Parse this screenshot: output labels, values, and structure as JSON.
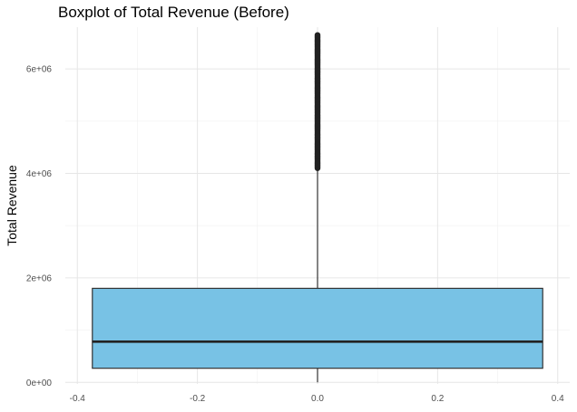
{
  "chart_data": {
    "type": "boxplot",
    "title": "Boxplot of Total Revenue (Before)",
    "xlabel": "",
    "ylabel": "Total Revenue",
    "xlim": [
      -0.42,
      0.42
    ],
    "ylim": [
      -30000,
      6800000
    ],
    "x_ticks": [
      -0.4,
      -0.2,
      0.0,
      0.2,
      0.4
    ],
    "x_tick_labels": [
      "-0.4",
      "-0.2",
      "0.0",
      "0.2",
      "0.4"
    ],
    "y_ticks": [
      0,
      2000000,
      4000000,
      6000000
    ],
    "y_tick_labels": [
      "0e+00",
      "2e+06",
      "4e+06",
      "6e+06"
    ],
    "grid": true,
    "box": {
      "x": 0.0,
      "x_range": [
        -0.375,
        0.375
      ],
      "lower_whisker": 0,
      "q1": 270000,
      "median": 780000,
      "q3": 1800000,
      "upper_whisker": 4100000,
      "outliers_range": [
        4100000,
        6650000
      ],
      "fill": "#78C2E5",
      "stroke": "#333333"
    }
  }
}
